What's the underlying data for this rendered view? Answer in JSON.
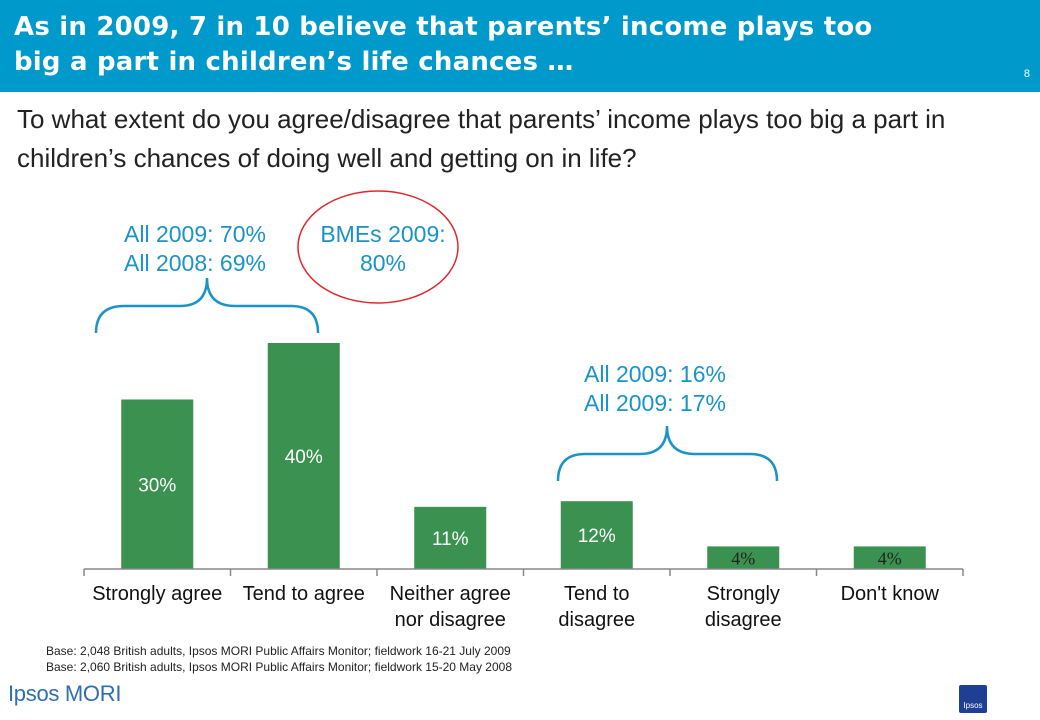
{
  "header": {
    "title": "As in 2009, 7 in 10 believe that parents’ income plays too big a part in children’s life chances …",
    "page_number": "8"
  },
  "question": "To what extent do you agree/disagree that parents’ income plays too big a part in children’s chances of doing well and getting on in life?",
  "callouts": {
    "agree_line1": "All 2009: 70%",
    "agree_line2": "All 2008: 69%",
    "bme_line1": "BMEs 2009:",
    "bme_line2": "80%",
    "disagree_line1": "All 2009: 16%",
    "disagree_line2": "All 2009: 17%"
  },
  "footnotes": {
    "line1": "Base: 2,048 British adults, Ipsos MORI Public Affairs Monitor; fieldwork 16-21 July 2009",
    "line2": "Base: 2,060 British adults, Ipsos MORI Public Affairs Monitor; fieldwork 15-20 May 2008"
  },
  "logo": "Ipsos MORI",
  "brand_icon_text": "Ipsos",
  "colors": {
    "header": "#0099cc",
    "bar": "#3a9150",
    "callout": "#1a93c9",
    "circle": "#e0272f",
    "logo": "#2e6fb1"
  },
  "chart_data": {
    "type": "bar",
    "categories": [
      "Strongly agree",
      "Tend to agree",
      "Neither agree nor disagree",
      "Tend to disagree",
      "Strongly disagree",
      "Don't know"
    ],
    "category_lines": [
      [
        "Strongly agree"
      ],
      [
        "Tend to agree"
      ],
      [
        "Neither agree",
        "nor disagree"
      ],
      [
        "Tend to",
        "disagree"
      ],
      [
        "Strongly",
        "disagree"
      ],
      [
        "Don't know"
      ]
    ],
    "values": [
      30,
      40,
      11,
      12,
      4,
      4
    ],
    "data_labels": [
      "30%",
      "40%",
      "11%",
      "12%",
      "4%",
      "4%"
    ],
    "ylim": [
      0,
      40
    ],
    "title": "",
    "xlabel": "",
    "ylabel": ""
  }
}
